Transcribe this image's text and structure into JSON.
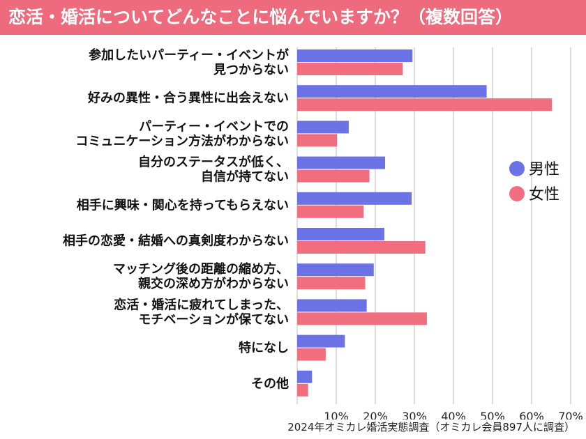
{
  "title": "恋活・婚活についてどんなことに悩んでいますか？（複数回答）",
  "source": "2024年オミカレ婚活実態調査（オミカレ会員897人に調査）",
  "colors": {
    "title_bg": "#ee6b7d",
    "male": "#6b72e6",
    "female": "#f06e7e",
    "grid": "#d0d0d0"
  },
  "chart_data": {
    "type": "bar",
    "orientation": "horizontal",
    "title": "恋活・婚活についてどんなことに悩んでいますか？（複数回答）",
    "categories": [
      [
        "参加したいパーティー・イベントが",
        "見つからない"
      ],
      [
        "好みの異性・合う異性に出会えない"
      ],
      [
        "パーティー・イベントでの",
        "コミュニケーション方法がわからない"
      ],
      [
        "自分のステータスが低く、",
        "自信が持てない"
      ],
      [
        "相手に興味・関心を持ってもらえない"
      ],
      [
        "相手の恋愛・結婚への真剣度わからない"
      ],
      [
        "マッチング後の距離の縮め方、",
        "親交の深め方がわからない"
      ],
      [
        "恋活・婚活に疲れてしまった、",
        "モチベーションが保てない"
      ],
      [
        "特になし"
      ],
      [
        "その他"
      ]
    ],
    "series": [
      {
        "name": "男性",
        "values": [
          29.5,
          48.5,
          13.2,
          22.5,
          29.3,
          22.3,
          19.6,
          17.8,
          12.2,
          3.8
        ]
      },
      {
        "name": "女性",
        "values": [
          27.0,
          65.2,
          10.2,
          18.5,
          17.0,
          32.8,
          17.4,
          33.2,
          7.3,
          2.8
        ]
      }
    ],
    "xticks": [
      "10%",
      "20%",
      "30%",
      "40%",
      "50%",
      "60%",
      "70%"
    ],
    "xlim": [
      0,
      70
    ],
    "legend": "right"
  }
}
